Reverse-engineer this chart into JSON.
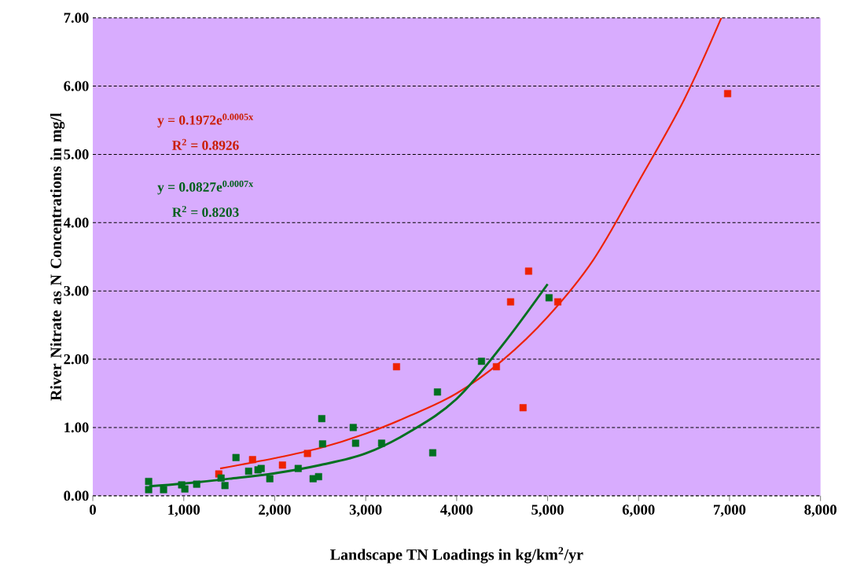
{
  "chart_data": {
    "type": "scatter",
    "xlabel": "Landscape TN Loadings in kg/km$^{2}$/yr",
    "ylabel": "River Nitrate as N Concentrations in mg/l",
    "xlim": [
      0,
      8000
    ],
    "ylim": [
      0,
      7
    ],
    "xticks": [
      0,
      {
        "value": 1000,
        "label": "1,000"
      },
      {
        "value": 2000,
        "label": "2,000"
      },
      {
        "value": 3000,
        "label": "3,000"
      },
      {
        "value": 4000,
        "label": "4,000"
      },
      {
        "value": 5000,
        "label": "5,000"
      },
      {
        "value": 6000,
        "label": "6,000"
      },
      {
        "value": 7000,
        "label": "7,000"
      },
      {
        "value": 8000,
        "label": "8,000"
      }
    ],
    "yticks": [
      {
        "value": 0,
        "label": "0.00"
      },
      {
        "value": 1,
        "label": "1.00"
      },
      {
        "value": 2,
        "label": "2.00"
      },
      {
        "value": 3,
        "label": "3.00"
      },
      {
        "value": 4,
        "label": "4.00"
      },
      {
        "value": 5,
        "label": "5.00"
      },
      {
        "value": 6,
        "label": "6.00"
      },
      {
        "value": 7,
        "label": "7.00"
      }
    ],
    "grid": "y",
    "marker": "square",
    "series": [
      {
        "color": "#ee2200",
        "x": [
          1385,
          1756,
          2085,
          2360,
          3339,
          4437,
          4730,
          4791,
          4593,
          5112,
          6979
        ],
        "values": [
          0.32,
          0.53,
          0.45,
          0.62,
          1.89,
          1.89,
          1.29,
          3.29,
          2.84,
          2.84,
          5.89
        ]
      },
      {
        "color": "#007020",
        "x": [
          614,
          614,
          778,
          977,
          1012,
          1142,
          1410,
          1453,
          1574,
          1713,
          1816,
          1851,
          1946,
          2258,
          2422,
          2482,
          2517,
          2526,
          2863,
          2889,
          3175,
          3737,
          3789,
          4273,
          5016
        ],
        "values": [
          0.21,
          0.09,
          0.09,
          0.16,
          0.1,
          0.17,
          0.26,
          0.15,
          0.56,
          0.36,
          0.38,
          0.4,
          0.25,
          0.4,
          0.25,
          0.28,
          1.13,
          0.76,
          1.0,
          0.77,
          0.77,
          0.63,
          1.52,
          1.97,
          2.9
        ]
      },
      {
        "color": "#ee2200",
        "type": "line",
        "marker": "none",
        "x": [
          1400,
          2000,
          2500,
          3000,
          3500,
          4000,
          4500,
          5000,
          5500,
          6000,
          6500,
          6910
        ],
        "values": [
          0.4,
          0.55,
          0.7,
          0.91,
          1.18,
          1.5,
          1.98,
          2.62,
          3.45,
          4.6,
          5.8,
          7.0
        ]
      },
      {
        "color": "#007020",
        "type": "line",
        "marker": "none",
        "x": [
          620,
          1000,
          1500,
          2000,
          2500,
          3000,
          3500,
          4000,
          4500,
          5000
        ],
        "values": [
          0.14,
          0.18,
          0.25,
          0.33,
          0.45,
          0.62,
          0.95,
          1.42,
          2.2,
          3.1
        ]
      }
    ],
    "annotations": [
      "y = 0.1972e$^{0.0005x}$",
      "R$^{2}$ = 0.8926",
      "y = 0.0827e$^{0.0007x}$",
      "R$^{2}$ = 0.8203"
    ]
  }
}
